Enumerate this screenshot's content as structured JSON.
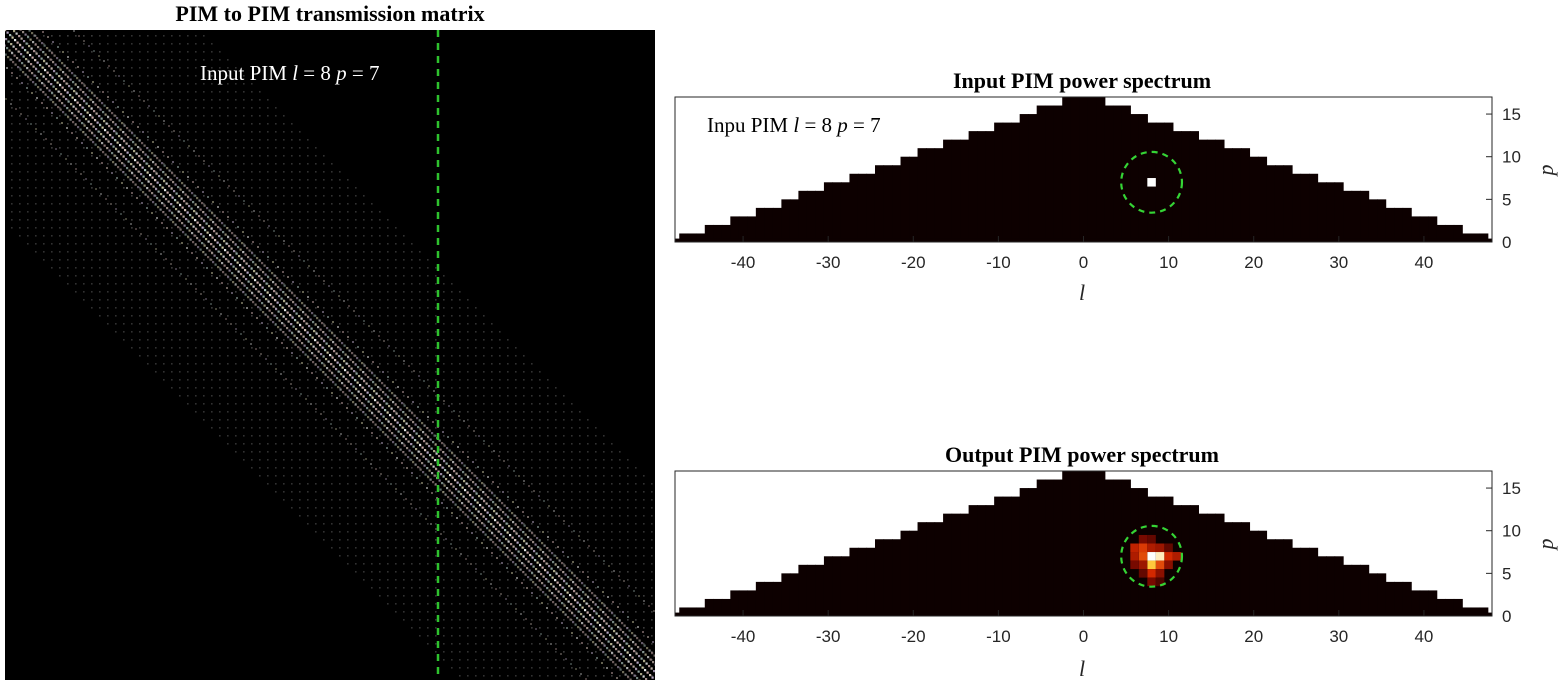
{
  "colors": {
    "background": "#ffffff",
    "matrix_bg": "#000000",
    "region_fill": "#0d0000",
    "outside_region": "#ffffff",
    "circle": "#35d435",
    "dashed_line": "#2ec22e",
    "input_spot": "#ffffff"
  },
  "matrix": {
    "title": "PIM to PIM transmission matrix",
    "annotation": {
      "prefix": "Input PIM ",
      "l_sym": "l",
      "mid": " = 8 ",
      "p_sym": "p",
      "suffix": " = 7"
    }
  },
  "chart_data": [
    {
      "type": "heatmap",
      "title": "PIM to PIM transmission matrix",
      "description_values": {
        "input_l": 8,
        "input_p": 7
      },
      "structure": "dominant diagonal with sparse off-diagonal lattice",
      "marker_line": "vertical dashed green at selected input column"
    },
    {
      "type": "heatmap",
      "title": "Input PIM power spectrum",
      "xlabel": "l",
      "ylabel": "p",
      "xlim": [
        -48,
        48
      ],
      "ylim": [
        0,
        17
      ],
      "xticks": [
        -40,
        -30,
        -20,
        -10,
        0,
        10,
        20,
        30,
        40
      ],
      "yticks": [
        0,
        5,
        10,
        15
      ],
      "annotation": {
        "prefix": "Inpu PIM ",
        "l_sym": "l",
        "mid": " = 8 ",
        "p_sym": "p",
        "suffix": " = 7"
      },
      "circle": {
        "l": 8,
        "p": 7,
        "radius": 3.5
      },
      "hot_cells": [
        {
          "l": 8,
          "p": 7,
          "value": 1.0
        }
      ]
    },
    {
      "type": "heatmap",
      "title": "Output PIM power spectrum",
      "xlabel": "l",
      "ylabel": "p",
      "xlim": [
        -48,
        48
      ],
      "ylim": [
        0,
        17
      ],
      "xticks": [
        -40,
        -30,
        -20,
        -10,
        0,
        10,
        20,
        30,
        40
      ],
      "yticks": [
        0,
        5,
        10,
        15
      ],
      "circle": {
        "l": 8,
        "p": 7,
        "radius": 3.5
      },
      "hot_cells": [
        {
          "l": 8,
          "p": 7,
          "value": 1.0
        },
        {
          "l": 9,
          "p": 7,
          "value": 0.95
        },
        {
          "l": 8,
          "p": 6,
          "value": 0.85
        },
        {
          "l": 7,
          "p": 7,
          "value": 0.6
        },
        {
          "l": 7,
          "p": 8,
          "value": 0.55
        },
        {
          "l": 6,
          "p": 8,
          "value": 0.45
        },
        {
          "l": 6,
          "p": 7,
          "value": 0.4
        },
        {
          "l": 10,
          "p": 7,
          "value": 0.5
        },
        {
          "l": 11,
          "p": 7,
          "value": 0.4
        },
        {
          "l": 9,
          "p": 6,
          "value": 0.6
        },
        {
          "l": 8,
          "p": 5,
          "value": 0.5
        },
        {
          "l": 9,
          "p": 8,
          "value": 0.35
        },
        {
          "l": 8,
          "p": 8,
          "value": 0.4
        },
        {
          "l": 7,
          "p": 6,
          "value": 0.35
        },
        {
          "l": 6,
          "p": 6,
          "value": 0.25
        },
        {
          "l": 10,
          "p": 6,
          "value": 0.3
        },
        {
          "l": 7,
          "p": 9,
          "value": 0.25
        },
        {
          "l": 8,
          "p": 9,
          "value": 0.2
        },
        {
          "l": 9,
          "p": 5,
          "value": 0.3
        },
        {
          "l": 7,
          "p": 5,
          "value": 0.2
        },
        {
          "l": 8,
          "p": 4,
          "value": 0.25
        },
        {
          "l": 10,
          "p": 8,
          "value": 0.2
        },
        {
          "l": 9,
          "p": 4,
          "value": 0.15
        }
      ]
    }
  ]
}
